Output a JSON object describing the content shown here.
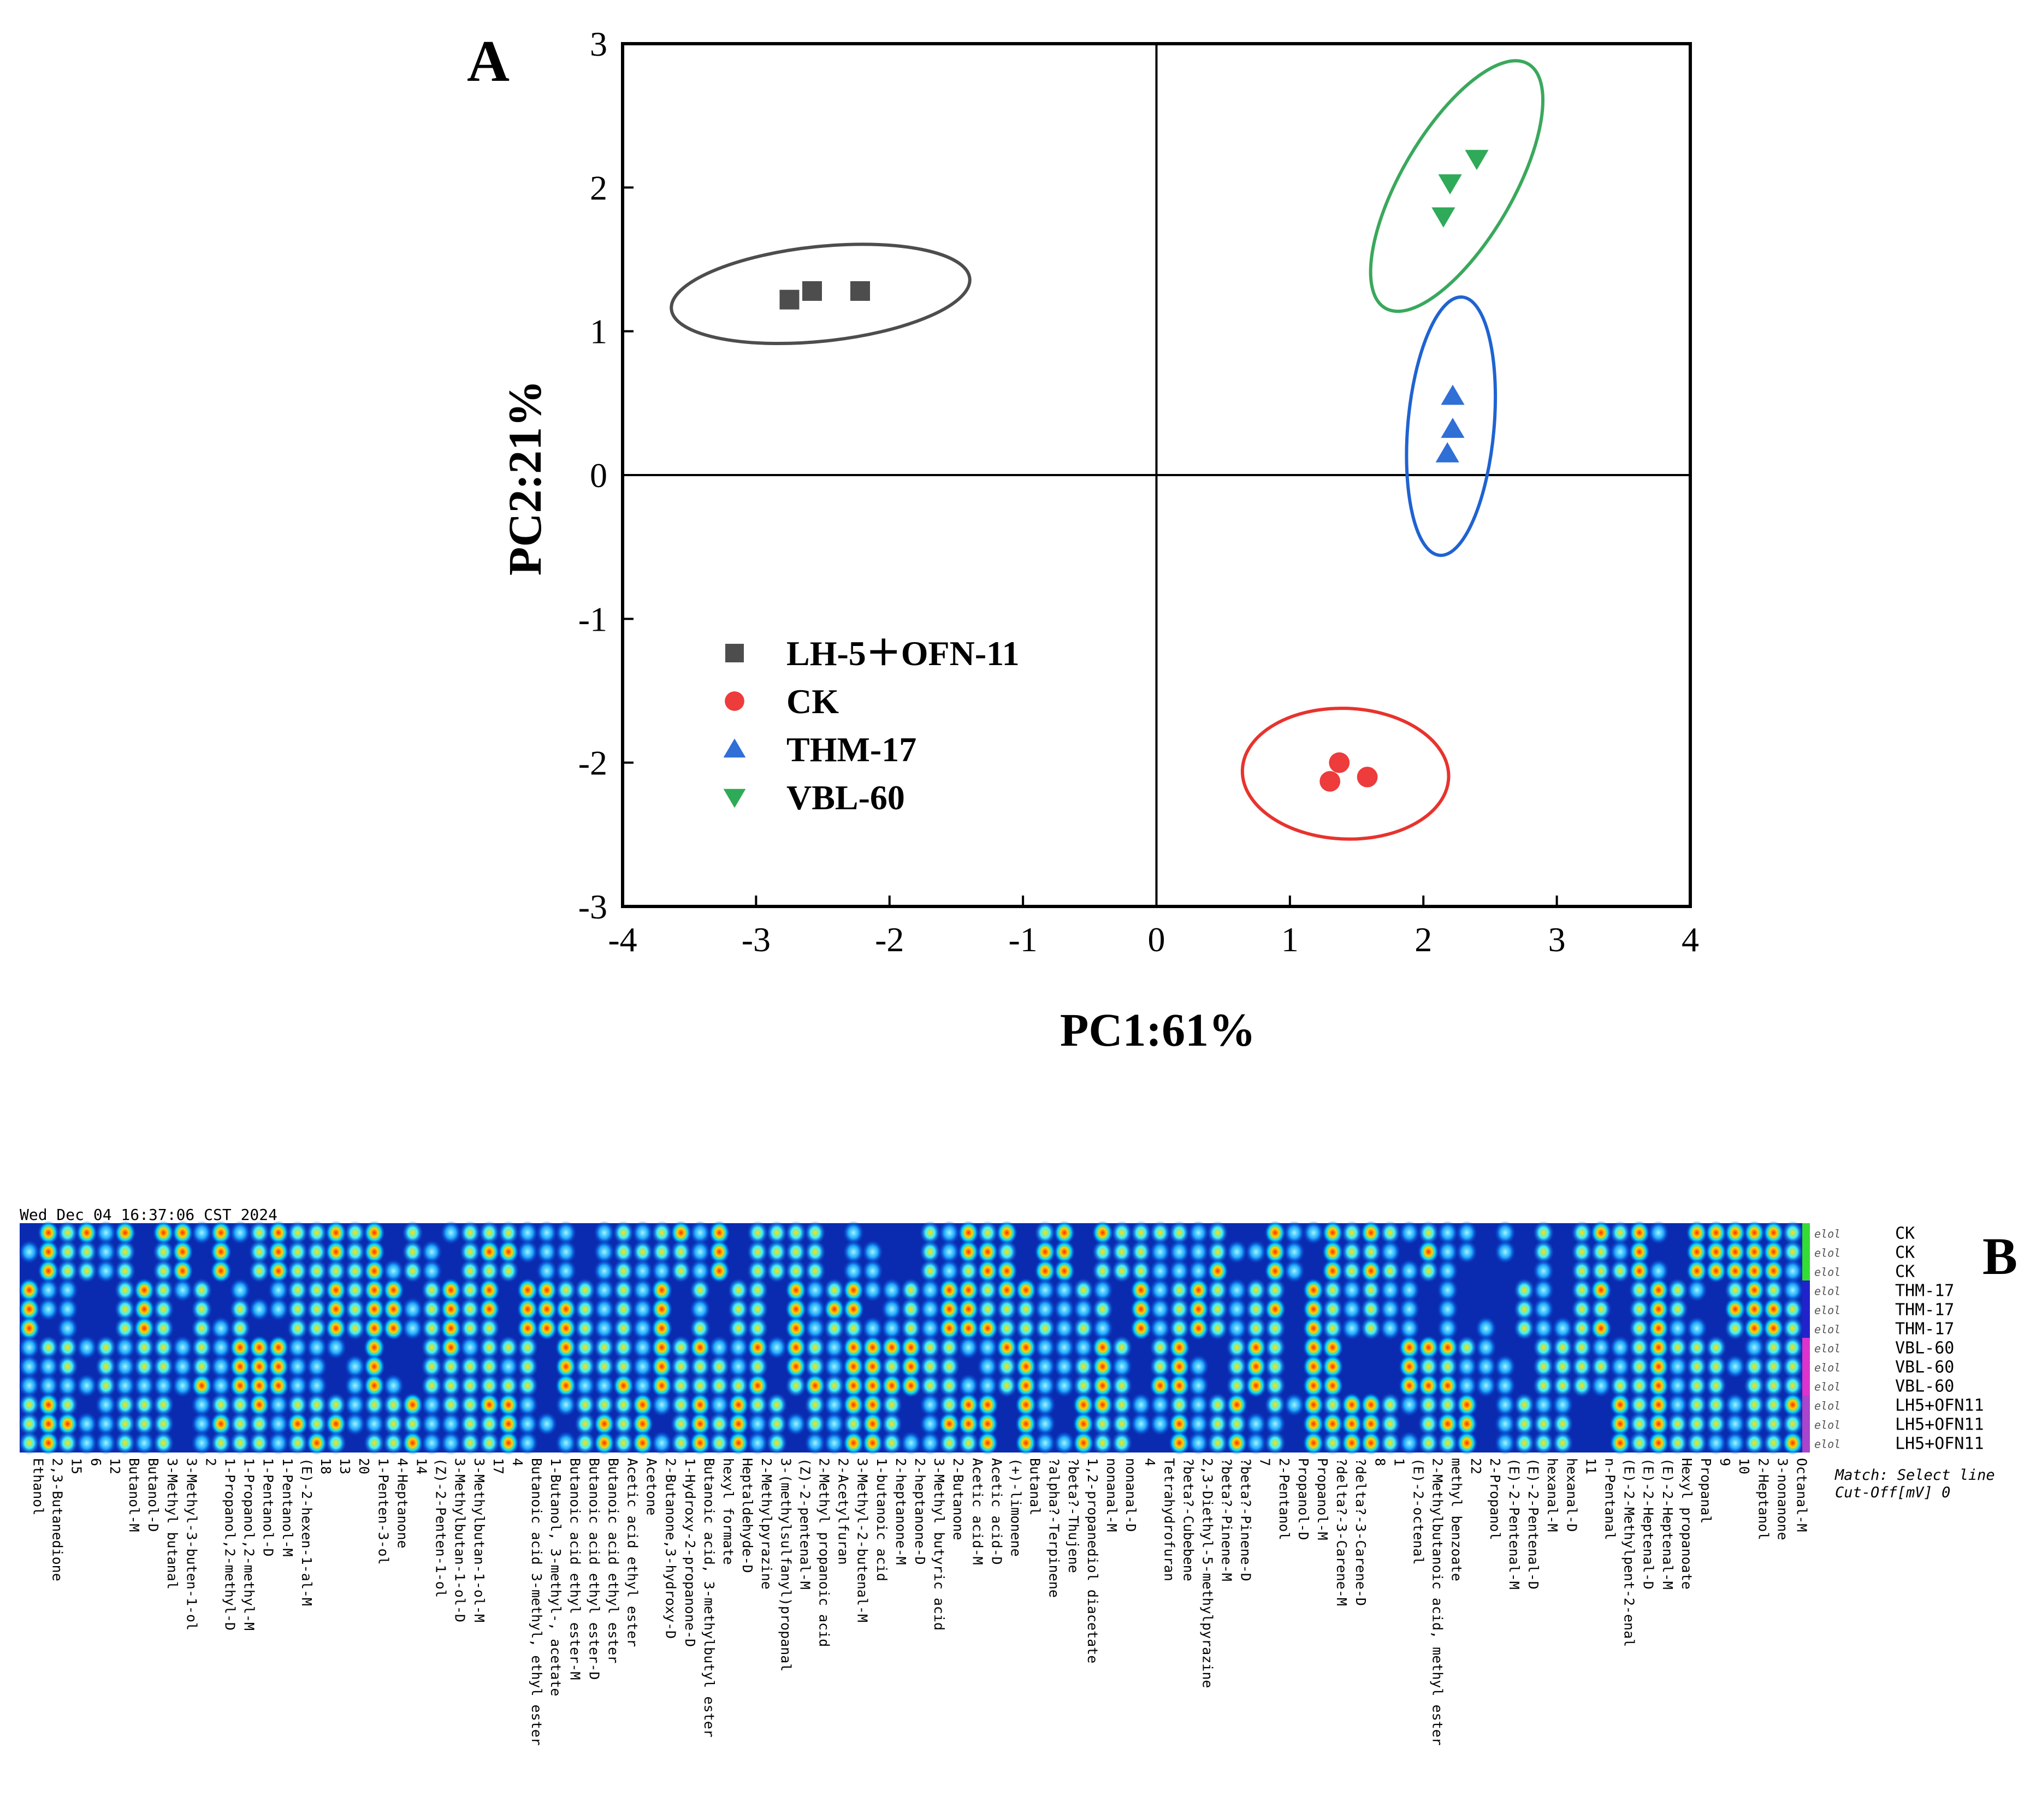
{
  "chart_data": [
    {
      "type": "scatter",
      "panel_label": "A",
      "xlabel": "PC1:61%",
      "ylabel": "PC2:21%",
      "xlim": [
        -4,
        4
      ],
      "ylim": [
        -3,
        3
      ],
      "x_ticks": [
        "-4",
        "-3",
        "-2",
        "-1",
        "0",
        "1",
        "2",
        "3",
        "4"
      ],
      "y_ticks": [
        "3",
        "2",
        "1",
        "0",
        "-1",
        "-2",
        "-3"
      ],
      "series": [
        {
          "name": "LH-5＋OFN-11",
          "marker": "square",
          "color": "#4d4d4d",
          "ellipse_color": "#4d4d4d",
          "points": [
            [
              -2.75,
              1.22
            ],
            [
              -2.58,
              1.28
            ],
            [
              -2.22,
              1.28
            ]
          ]
        },
        {
          "name": "CK",
          "marker": "circle",
          "color": "#ee3b3b",
          "ellipse_color": "#e8332e",
          "points": [
            [
              1.37,
              -2.0
            ],
            [
              1.3,
              -2.13
            ],
            [
              1.58,
              -2.1
            ]
          ]
        },
        {
          "name": "THM-17",
          "marker": "triangle-up",
          "color": "#2f6fd6",
          "ellipse_color": "#1f63d2",
          "points": [
            [
              2.22,
              0.55
            ],
            [
              2.22,
              0.32
            ],
            [
              2.18,
              0.15
            ]
          ]
        },
        {
          "name": "VBL-60",
          "marker": "triangle-down",
          "color": "#2faa58",
          "ellipse_color": "#3aa85c",
          "points": [
            [
              2.4,
              2.2
            ],
            [
              2.2,
              2.03
            ],
            [
              2.15,
              1.8
            ]
          ]
        }
      ]
    },
    {
      "type": "heatmap",
      "panel_label": "B",
      "timestamp": "Wed Dec 04 16:37:06 CST 2024",
      "match_note": "Match: Select line",
      "cutoff_note": "Cut-Off[mV] 0",
      "row_code": "elol",
      "rows": [
        "CK",
        "CK",
        "CK",
        "THM-17",
        "THM-17",
        "THM-17",
        "VBL-60",
        "VBL-60",
        "VBL-60",
        "LH5+OFN11",
        "LH5+OFN11",
        "LH5+OFN11"
      ],
      "row_colors": [
        "#33dd33",
        "#33dd33",
        "#33dd33",
        "#2222cc",
        "#2222cc",
        "#2222cc",
        "#dd33cc",
        "#dd33cc",
        "#dd33cc",
        "#aa44cc",
        "#aa44cc",
        "#aa44cc"
      ],
      "columns": [
        "Ethanol",
        "2,3-Butanedione",
        "15",
        "6",
        "12",
        "Butanol-M",
        "Butanol-D",
        "3-Methyl butanal",
        "3-Methyl-3-buten-1-ol",
        "2",
        "1-Propanol,2-methyl-D",
        "1-Propanol,2-methyl-M",
        "1-Pentanol-D",
        "1-Pentanol-M",
        "(E)-2-hexen-1-al-M",
        "18",
        "13",
        "20",
        "1-Penten-3-ol",
        "4-Heptanone",
        "14",
        "(Z)-2-Penten-1-ol",
        "3-Methylbutan-1-ol-D",
        "3-Methylbutan-1-ol-M",
        "17",
        "4",
        "Butanoic acid 3-methyl, ethyl ester",
        "1-Butanol, 3-methyl-, acetate",
        "Butanoic acid ethyl ester-M",
        "Butanoic acid ethyl ester-D",
        "Butanoic acid ethyl ester",
        "Acetic acid ethyl ester",
        "Acetone",
        "2-Butanone,3-hydroxy-D",
        "1-Hydroxy-2-propanone-D",
        "Butanoic acid, 3-methylbutyl ester",
        "hexyl formate",
        "Heptaldehyde-D",
        "2-Methylpyrazine",
        "3-(methylsulfanyl)propanal",
        "(Z)-2-pentenal-M",
        "2-Methyl propanoic acid",
        "2-Acetylfuran",
        "3-Methyl-2-butenal-M",
        "1-butanoic acid",
        "2-heptanone-M",
        "2-heptanone-D",
        "3-Methyl butyric acid",
        "2-Butanone",
        "Acetic acid-M",
        "Acetic acid-D",
        "(+)-limonene",
        "Butanal",
        "?alpha?-Terpinene",
        "?beta?-Thujene",
        "1,2-propanediol diacetate",
        "nonanal-M",
        "nonanal-D",
        "4",
        "Tetrahydrofuran",
        "?beta?-Cubebene",
        "2,3-Diethyl-5-methylpyrazine",
        "?beta?-Pinene-M",
        "?beta?-Pinene-D",
        "7",
        "2-Pentanol",
        "Propanol-D",
        "Propanol-M",
        "?delta?-3-Carene-M",
        "?delta?-3-Carene-D",
        "8",
        "1",
        "(E)-2-octenal",
        "2-Methylbutanoic acid, methyl ester",
        "methyl benzoate",
        "22",
        "2-Propanol",
        "(E)-2-Pentenal-M",
        "(E)-2-Pentenal-D",
        "hexanal-M",
        "hexanal-D",
        "11",
        "n-Pentanal",
        "(E)-2-Methylpent-2-enal",
        "(E)-2-Heptenal-D",
        "(E)-2-Heptenal-M",
        "Hexyl propanoate",
        "Propanal",
        "9",
        "10",
        "2-Heptanol",
        "3-nonanone",
        "Octanal-M"
      ]
    }
  ]
}
